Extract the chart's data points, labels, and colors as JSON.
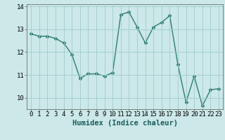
{
  "x": [
    0,
    1,
    2,
    3,
    4,
    5,
    6,
    7,
    8,
    9,
    10,
    11,
    12,
    13,
    14,
    15,
    16,
    17,
    18,
    19,
    20,
    21,
    22,
    23
  ],
  "y": [
    12.8,
    12.7,
    12.7,
    12.6,
    12.4,
    11.9,
    10.85,
    11.05,
    11.05,
    10.95,
    11.1,
    13.65,
    13.75,
    13.1,
    12.4,
    13.1,
    13.3,
    13.6,
    11.45,
    9.8,
    10.95,
    9.65,
    10.35,
    10.4
  ],
  "line_color": "#2e7d6e",
  "marker": "D",
  "marker_size": 2.5,
  "bg_color": "#cce8e8",
  "grid_color": "#a0cccc",
  "xlabel": "Humidex (Indice chaleur)",
  "ylim": [
    9.5,
    14.1
  ],
  "xlim": [
    -0.5,
    23.5
  ],
  "yticks": [
    10,
    11,
    12,
    13,
    14
  ],
  "xticks": [
    0,
    1,
    2,
    3,
    4,
    5,
    6,
    7,
    8,
    9,
    10,
    11,
    12,
    13,
    14,
    15,
    16,
    17,
    18,
    19,
    20,
    21,
    22,
    23
  ],
  "tick_fontsize": 6.5,
  "xlabel_fontsize": 7.5,
  "xlabel_fontweight": "bold",
  "linewidth": 1.0
}
